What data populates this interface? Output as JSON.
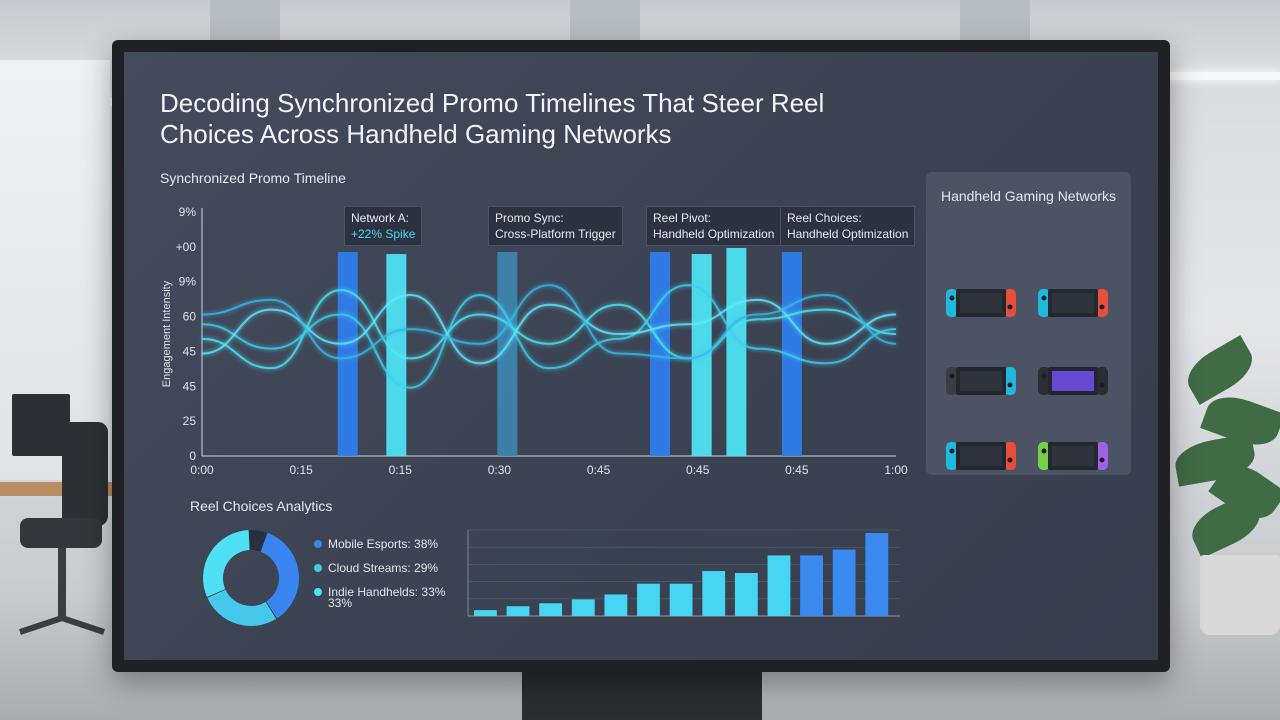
{
  "title": "Decoding Synchronized Promo Timelines That Steer Reel Choices Across Handheld Gaming Networks",
  "timeline": {
    "label": "Synchronized Promo Timeline",
    "ylabel": "Engagement Intensity"
  },
  "callouts": [
    {
      "line1": "Network A:",
      "line2": "+22% Spike"
    },
    {
      "line1": "Promo Sync:",
      "line2": "Cross-Platform Trigger"
    },
    {
      "line1": "Reel Pivot:",
      "line2": "Handheld Optimization"
    },
    {
      "line1": "Reel Choices:",
      "line2": "Handheld Optimization"
    }
  ],
  "networks": {
    "title": "Handheld Gaming Networks",
    "devices": [
      {
        "icon": "handheld-console-icon",
        "left": "#1ec0e8",
        "right": "#f0503c"
      },
      {
        "icon": "handheld-console-icon",
        "left": "#1ec0e8",
        "right": "#f0503c"
      },
      {
        "icon": "handheld-console-icon",
        "left": "#3a3d44",
        "right": "#1ec0e8"
      },
      {
        "icon": "handheld-console-icon",
        "left": "#2a2d33",
        "right": "#2a2d33"
      },
      {
        "icon": "handheld-console-icon",
        "left": "#1ec0e8",
        "right": "#f0503c"
      },
      {
        "icon": "handheld-console-icon",
        "left": "#7bd84a",
        "right": "#a463f2"
      }
    ]
  },
  "analytics": {
    "label": "Reel Choices Analytics",
    "legend": [
      {
        "label": "Mobile Esports: 38%",
        "color": "#3a86f0"
      },
      {
        "label": "Cloud Streams: 29%",
        "color": "#46c8ea"
      },
      {
        "label": "Indie Handhelds: 33%",
        "color": "#4fe0f5"
      }
    ],
    "legend_extra": "33%"
  },
  "colors": {
    "accent_blue": "#3a7ff0",
    "accent_cyan": "#46e0f5"
  },
  "chart_data": [
    {
      "type": "line",
      "title": "Synchronized Promo Timeline",
      "ylabel": "Engagement Intensity",
      "x_ticks": [
        "0:00",
        "0:15",
        "0:15",
        "0:30",
        "0:45",
        "0:45",
        "0:45",
        "1:00"
      ],
      "y_ticks": [
        "0",
        "25",
        "45",
        "45",
        "60",
        "9%",
        "+00",
        "9%"
      ],
      "series": [
        {
          "values": [
            48,
            36,
            68,
            40,
            58,
            46,
            62,
            40,
            56,
            60,
            50
          ]
        },
        {
          "values": [
            54,
            44,
            58,
            28,
            66,
            36,
            48,
            70,
            44,
            38,
            52
          ]
        },
        {
          "values": [
            42,
            60,
            46,
            66,
            38,
            62,
            50,
            54,
            64,
            46,
            58
          ]
        },
        {
          "values": [
            58,
            64,
            40,
            52,
            46,
            70,
            42,
            40,
            58,
            66,
            46
          ]
        }
      ],
      "bars": [
        {
          "x": 0.21,
          "height": 1.0,
          "color": "#2f7ff0"
        },
        {
          "x": 0.28,
          "height": 0.99,
          "color": "#4ee6f7"
        },
        {
          "x": 0.44,
          "height": 1.0,
          "color": "#3d86b0"
        },
        {
          "x": 0.66,
          "height": 1.0,
          "color": "#2f7ff0"
        },
        {
          "x": 0.72,
          "height": 0.99,
          "color": "#4ee6f7"
        },
        {
          "x": 0.77,
          "height": 1.02,
          "color": "#4ee6f7"
        },
        {
          "x": 0.85,
          "height": 1.0,
          "color": "#2f7ff0"
        }
      ]
    },
    {
      "type": "pie",
      "slices": [
        {
          "label": "Mobile Esports",
          "value": 38,
          "color": "#3a86f0"
        },
        {
          "label": "Cloud Streams",
          "value": 29,
          "color": "#46c8ea"
        },
        {
          "label": "Indie Handhelds",
          "value": 33,
          "color": "#4fe0f5"
        }
      ]
    },
    {
      "type": "bar",
      "values": [
        6,
        10,
        13,
        17,
        22,
        33,
        33,
        46,
        44,
        62,
        62,
        68,
        85
      ],
      "colors": [
        "#46d6f3",
        "#46d6f3",
        "#46d6f3",
        "#46d6f3",
        "#46d6f3",
        "#46d6f3",
        "#46d6f3",
        "#46d6f3",
        "#46d6f3",
        "#46d6f3",
        "#3b8af0",
        "#3b8af0",
        "#3b8af0"
      ]
    }
  ]
}
